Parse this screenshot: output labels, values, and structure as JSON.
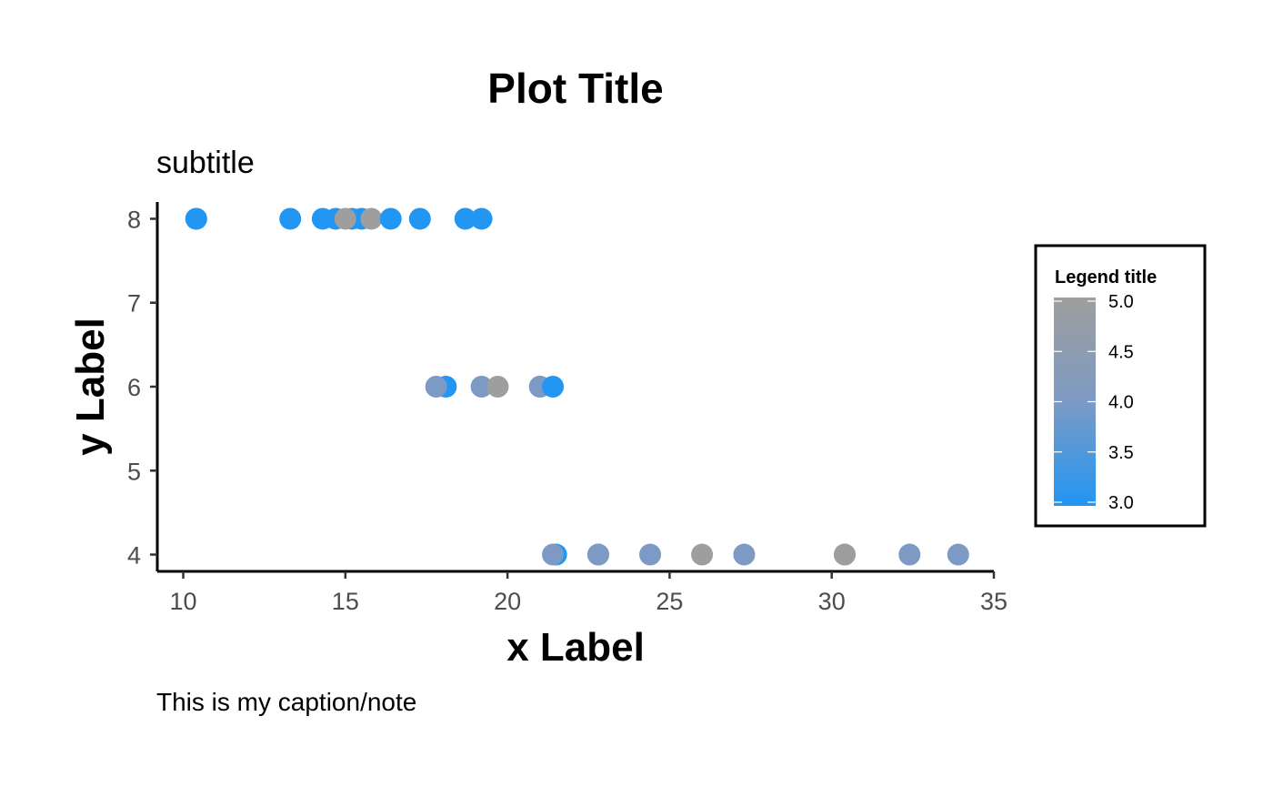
{
  "chart_data": {
    "type": "scatter",
    "title": "Plot Title",
    "subtitle": "subtitle",
    "xlabel": "x Label",
    "ylabel": "y Label",
    "caption": "This is my caption/note",
    "xlim": [
      9.2,
      35.0
    ],
    "ylim": [
      3.8,
      8.2
    ],
    "x_ticks": [
      10,
      15,
      20,
      25,
      30,
      35
    ],
    "x_tick_labels": [
      "10",
      "15",
      "20",
      "25",
      "30",
      "35"
    ],
    "y_ticks": [
      4,
      5,
      6,
      7,
      8
    ],
    "y_tick_labels": [
      "4",
      "5",
      "6",
      "7",
      "8"
    ],
    "grid": false,
    "legend": {
      "title": "Legend title",
      "placement": "right",
      "type": "colorbar",
      "range": [
        3.0,
        5.0
      ],
      "breaks": [
        3.0,
        3.5,
        4.0,
        4.5,
        5.0
      ],
      "break_labels": [
        "3.0",
        "3.5",
        "4.0",
        "4.5",
        "5.0"
      ],
      "low_color": "#2196F3",
      "mid_color": "#7D9AC4",
      "high_color": "#9E9E9E"
    },
    "points": [
      {
        "x": 10.4,
        "y": 8,
        "color_value": 3
      },
      {
        "x": 10.4,
        "y": 8,
        "color_value": 3
      },
      {
        "x": 13.3,
        "y": 8,
        "color_value": 3
      },
      {
        "x": 14.3,
        "y": 8,
        "color_value": 3
      },
      {
        "x": 14.7,
        "y": 8,
        "color_value": 3
      },
      {
        "x": 15.2,
        "y": 8,
        "color_value": 3
      },
      {
        "x": 15.5,
        "y": 8,
        "color_value": 3
      },
      {
        "x": 15.0,
        "y": 8,
        "color_value": 5
      },
      {
        "x": 15.8,
        "y": 8,
        "color_value": 5
      },
      {
        "x": 16.4,
        "y": 8,
        "color_value": 3
      },
      {
        "x": 17.3,
        "y": 8,
        "color_value": 3
      },
      {
        "x": 18.7,
        "y": 8,
        "color_value": 3
      },
      {
        "x": 19.2,
        "y": 8,
        "color_value": 3
      },
      {
        "x": 18.1,
        "y": 6,
        "color_value": 3
      },
      {
        "x": 17.8,
        "y": 6,
        "color_value": 4
      },
      {
        "x": 19.2,
        "y": 6,
        "color_value": 4
      },
      {
        "x": 19.7,
        "y": 6,
        "color_value": 5
      },
      {
        "x": 21.0,
        "y": 6,
        "color_value": 4
      },
      {
        "x": 21.0,
        "y": 6,
        "color_value": 4
      },
      {
        "x": 21.4,
        "y": 6,
        "color_value": 3
      },
      {
        "x": 21.5,
        "y": 4,
        "color_value": 3
      },
      {
        "x": 21.4,
        "y": 4,
        "color_value": 4
      },
      {
        "x": 22.8,
        "y": 4,
        "color_value": 4
      },
      {
        "x": 22.8,
        "y": 4,
        "color_value": 4
      },
      {
        "x": 24.4,
        "y": 4,
        "color_value": 4
      },
      {
        "x": 26.0,
        "y": 4,
        "color_value": 5
      },
      {
        "x": 27.3,
        "y": 4,
        "color_value": 4
      },
      {
        "x": 30.4,
        "y": 4,
        "color_value": 4
      },
      {
        "x": 30.4,
        "y": 4,
        "color_value": 5
      },
      {
        "x": 32.4,
        "y": 4,
        "color_value": 4
      },
      {
        "x": 33.9,
        "y": 4,
        "color_value": 4
      }
    ]
  }
}
